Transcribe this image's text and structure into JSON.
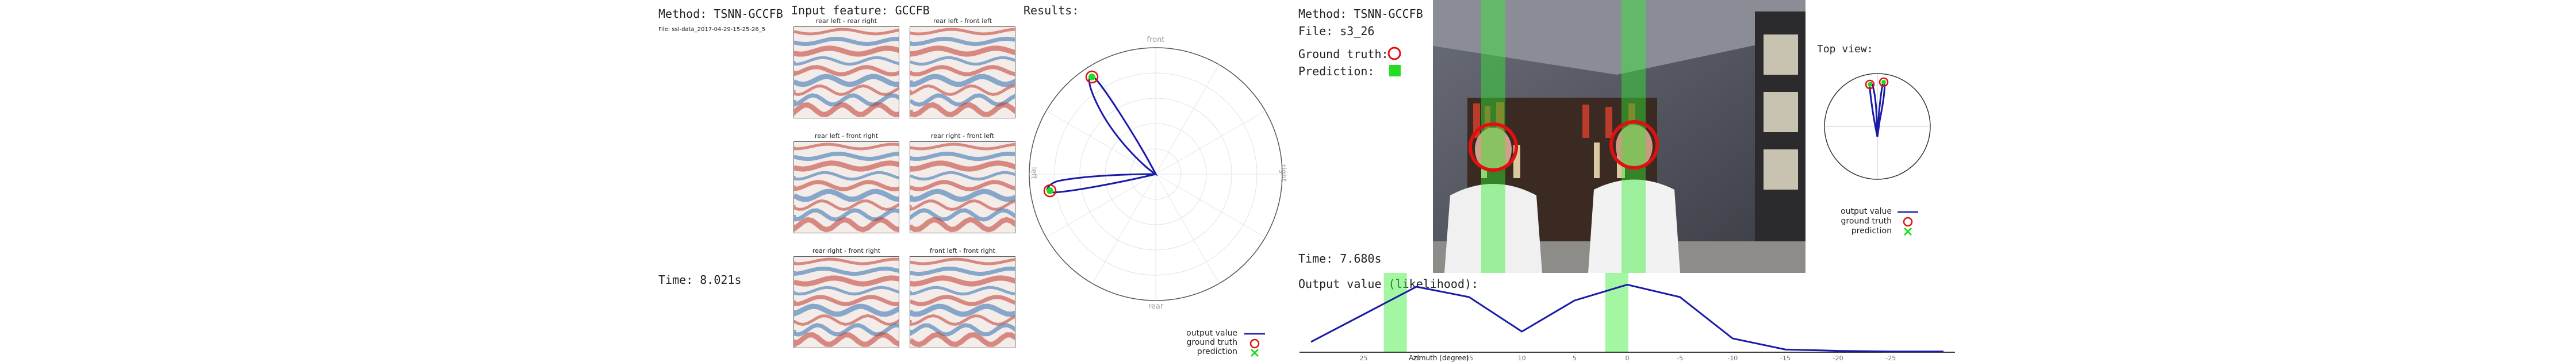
{
  "left": {
    "method": "Method: TSNN-GCCFB",
    "file": "File: ssl-data_2017-04-29-15-25-26_5",
    "time": "Time: 8.021s",
    "input_feature": "Input feature: GCCFB",
    "results": "Results:",
    "heatmaps": [
      {
        "title": "rear left - rear right"
      },
      {
        "title": "rear left - front left"
      },
      {
        "title": "rear left - front right"
      },
      {
        "title": "rear right - front left"
      },
      {
        "title": "rear right - front right"
      },
      {
        "title": "front left - front right"
      }
    ],
    "polar": {
      "front": "front",
      "rear": "rear",
      "left": "left",
      "right": "right"
    },
    "legend": {
      "output": "output value",
      "truth": "ground truth",
      "pred": "prediction"
    }
  },
  "right": {
    "method": "Method: TSNN-GCCFB",
    "file": "File: s3_26",
    "ground_truth": "Ground truth:",
    "prediction": "Prediction:",
    "time": "Time: 7.680s",
    "output_label": "Output value (likelihood):",
    "azimuth_label": "Azimuth (degree)",
    "top_view": "Top view:",
    "legend": {
      "output": "output value",
      "truth": "ground truth",
      "pred": "prediction"
    }
  },
  "colors": {
    "curve": "#1a1aa8",
    "truth": "#e01010",
    "pred": "#22dd22",
    "heat_red": "#c0392b",
    "heat_blue": "#2e6fb0"
  },
  "chart_data": [
    {
      "type": "line",
      "xlabel": "Azimuth (degree)",
      "ylabel": "Output value (likelihood):",
      "x": [
        30,
        25,
        20,
        15,
        10,
        5,
        0,
        -5,
        -10,
        -15,
        -20,
        -25,
        -30
      ],
      "x_ticks": [
        "25",
        "20",
        "15",
        "10",
        "5",
        "0",
        "-5",
        "-10",
        "-15",
        "-20",
        "-25"
      ],
      "series": [
        {
          "name": "output value",
          "values": [
            0.15,
            0.55,
            0.95,
            0.8,
            0.3,
            0.75,
            0.98,
            0.8,
            0.2,
            0.04,
            0.02,
            0.01,
            0.01
          ]
        }
      ],
      "ground_truth_x": [
        22,
        1
      ],
      "prediction_x": [
        22,
        1
      ]
    }
  ]
}
